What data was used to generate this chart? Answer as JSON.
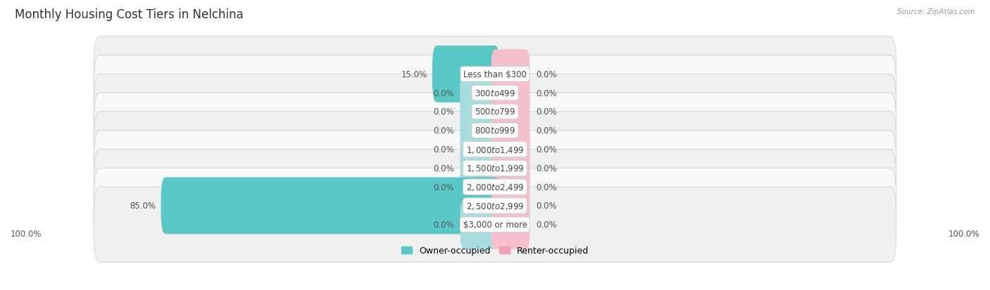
{
  "title": "Monthly Housing Cost Tiers in Nelchina",
  "source": "Source: ZipAtlas.com",
  "categories": [
    "Less than $300",
    "$300 to $499",
    "$500 to $799",
    "$800 to $999",
    "$1,000 to $1,499",
    "$1,500 to $1,999",
    "$2,000 to $2,499",
    "$2,500 to $2,999",
    "$3,000 or more"
  ],
  "owner_values": [
    15.0,
    0.0,
    0.0,
    0.0,
    0.0,
    0.0,
    0.0,
    85.0,
    0.0
  ],
  "renter_values": [
    0.0,
    0.0,
    0.0,
    0.0,
    0.0,
    0.0,
    0.0,
    0.0,
    0.0
  ],
  "owner_color": "#5bc8c8",
  "renter_color": "#f4a0b5",
  "owner_stub_color": "#a8dde0",
  "renter_stub_color": "#f5c0cc",
  "owner_label": "Owner-occupied",
  "renter_label": "Renter-occupied",
  "x_left_label": "100.0%",
  "x_right_label": "100.0%",
  "xlim": 100,
  "stub_size": 8.0,
  "title_fontsize": 12,
  "label_fontsize": 8.5,
  "value_fontsize": 8.5,
  "source_fontsize": 7.5,
  "legend_fontsize": 9
}
